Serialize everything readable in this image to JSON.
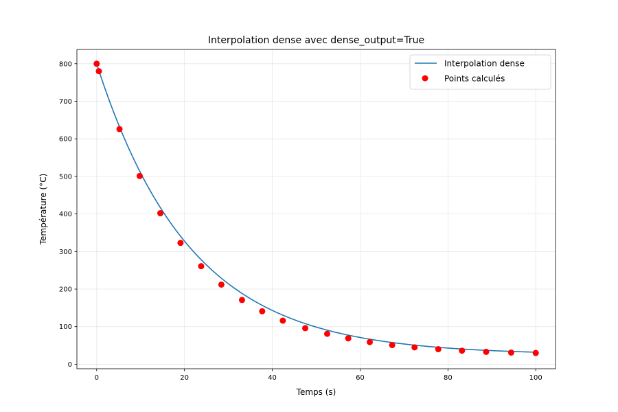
{
  "chart_data": {
    "type": "line",
    "title": "Interpolation dense avec dense_output=True",
    "xlabel": "Temps (s)",
    "ylabel": "Température (°C)",
    "xlim": [
      -4.5,
      104.5
    ],
    "ylim": [
      -12,
      838
    ],
    "xticks": [
      0,
      20,
      40,
      60,
      80,
      100
    ],
    "yticks": [
      0,
      100,
      200,
      300,
      400,
      500,
      600,
      700,
      800
    ],
    "grid": true,
    "legend_position": "top-right",
    "series": [
      {
        "name": "Interpolation dense",
        "kind": "line",
        "color": "#1f77b4",
        "model": {
          "ambient": 25,
          "initial": 800,
          "rate": 0.047
        },
        "x_range": [
          0,
          100
        ]
      },
      {
        "name": "Points calculés",
        "kind": "scatter",
        "color": "#ff0000",
        "x": [
          0,
          0.5,
          5.2,
          9.8,
          14.5,
          19.1,
          23.8,
          28.4,
          33.1,
          37.7,
          42.4,
          47.5,
          52.5,
          57.3,
          62.2,
          67.3,
          72.4,
          77.8,
          83.2,
          88.7,
          94.4,
          100
        ],
        "y": [
          800,
          780,
          626,
          501,
          402,
          323,
          261,
          212,
          171,
          141,
          116,
          96,
          81,
          69,
          59,
          51,
          45,
          40,
          36,
          33,
          31,
          30
        ]
      }
    ]
  }
}
